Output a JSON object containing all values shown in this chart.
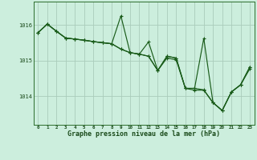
{
  "background_color": "#cceedd",
  "grid_color": "#aaccbb",
  "line_color": "#1a5c1a",
  "marker_color": "#1a5c1a",
  "xlabel": "Graphe pression niveau de la mer (hPa)",
  "xlabel_fontsize": 6.0,
  "yticks": [
    1014,
    1015,
    1016
  ],
  "ylim": [
    1013.2,
    1016.65
  ],
  "xlim": [
    -0.5,
    23.5
  ],
  "xticks": [
    0,
    1,
    2,
    3,
    4,
    5,
    6,
    7,
    8,
    9,
    10,
    11,
    12,
    13,
    14,
    15,
    16,
    17,
    18,
    19,
    20,
    21,
    22,
    23
  ],
  "series1": [
    1015.78,
    1016.02,
    1015.82,
    1015.63,
    1015.6,
    1015.57,
    1015.53,
    1015.5,
    1015.47,
    1016.25,
    1015.22,
    1015.18,
    1015.52,
    1014.72,
    1015.12,
    1015.07,
    1014.22,
    1014.22,
    1015.62,
    1013.82,
    1013.6,
    1014.12,
    1014.32,
    1014.82
  ],
  "series2": [
    1015.78,
    1016.02,
    1015.82,
    1015.63,
    1015.6,
    1015.57,
    1015.53,
    1015.5,
    1015.47,
    1015.32,
    1015.22,
    1015.18,
    1015.12,
    1014.72,
    1015.12,
    1015.07,
    1014.22,
    1014.22,
    1014.18,
    1013.82,
    1013.6,
    1014.12,
    1014.32,
    1014.82
  ],
  "series3": [
    1015.78,
    1016.02,
    1015.82,
    1015.63,
    1015.6,
    1015.57,
    1015.53,
    1015.5,
    1015.47,
    1015.32,
    1015.22,
    1015.18,
    1015.12,
    1014.72,
    1015.07,
    1015.02,
    1014.22,
    1014.17,
    1014.17,
    1013.82,
    1013.6,
    1014.12,
    1014.32,
    1014.77
  ],
  "linewidth": 0.85,
  "marker_size": 2.8,
  "marker_lw": 0.8
}
